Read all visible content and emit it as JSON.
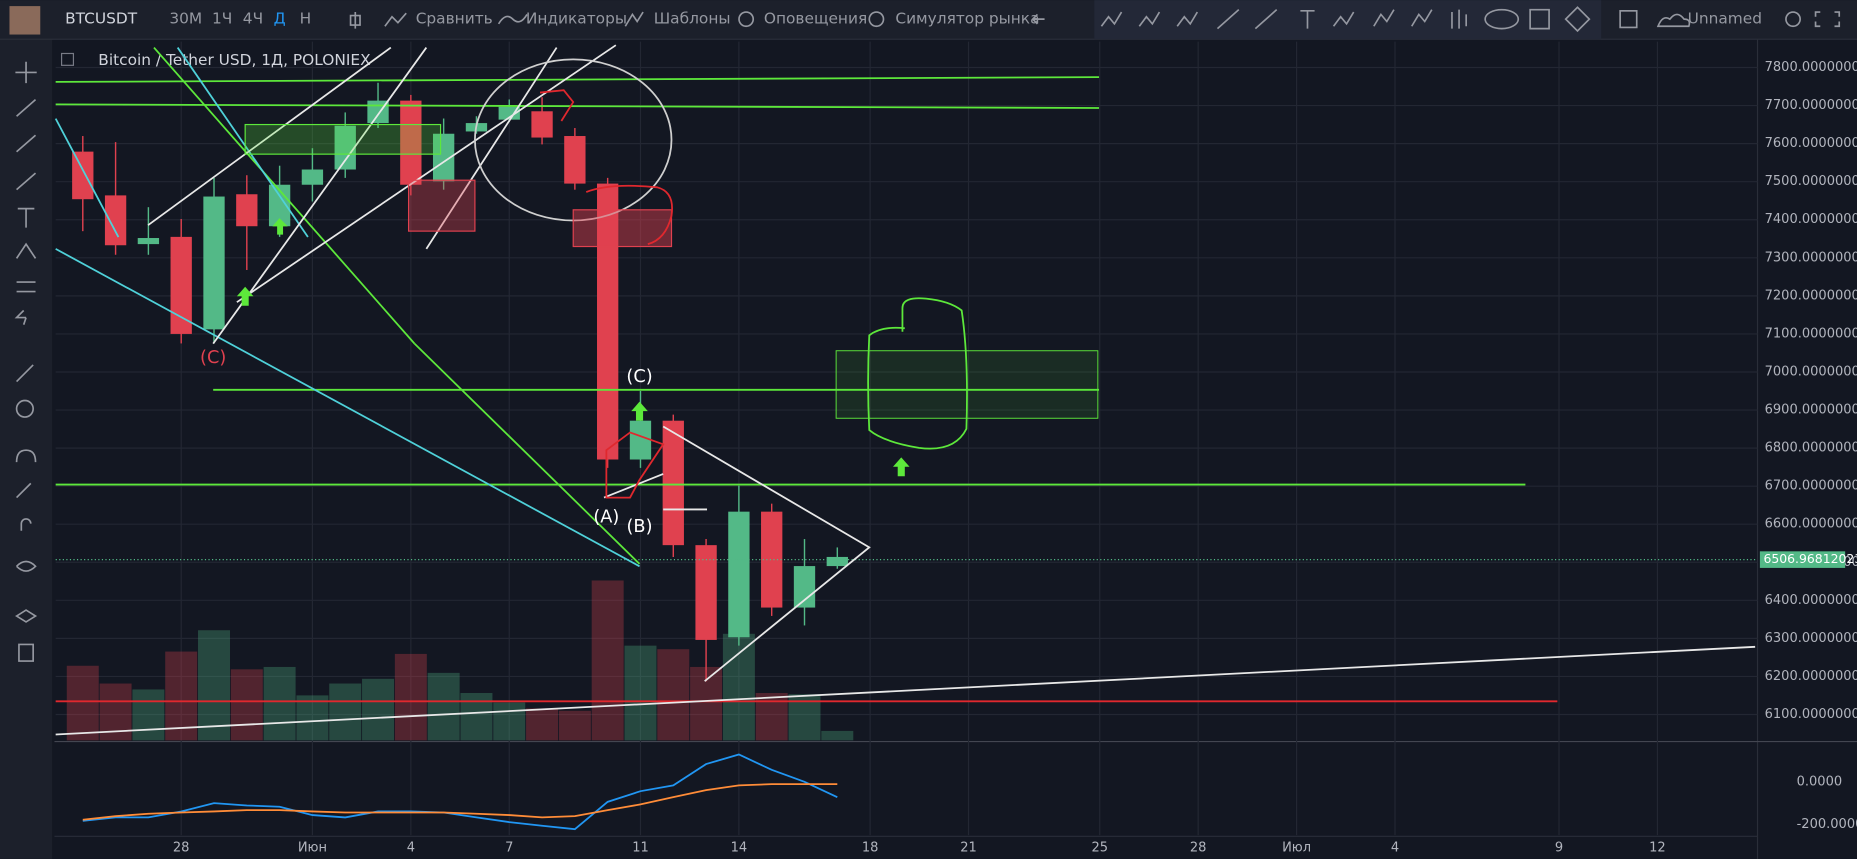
{
  "toolbar": {
    "symbol": "BTCUSDT",
    "intervals": [
      "30М",
      "1Ч",
      "4Ч",
      "Д",
      "Н"
    ],
    "compare": "Сравнить",
    "indicators": "Индикаторы",
    "templates": "Шаблоны",
    "alerts": "Оповещения",
    "simulator": "Симулятор рынка",
    "layout": "Unnamed"
  },
  "annotations": [
    "(C)",
    "(C)",
    "(A)",
    "(B)"
  ],
  "chart_data": {
    "type": "candlestick",
    "title": "Bitcoin / Tether USD, 1Д, POLONIEX",
    "categories": [
      null,
      null,
      null,
      "28",
      null,
      null,
      null,
      "Июн",
      null,
      null,
      "4",
      null,
      null,
      "7",
      null,
      null,
      null,
      "11",
      null,
      null,
      "14",
      null,
      null,
      null,
      "18",
      null,
      null,
      "21",
      null,
      null,
      null,
      "25",
      null,
      null,
      "28",
      null,
      null,
      "Июл",
      null,
      null,
      "4",
      null,
      null,
      null,
      null,
      "9",
      null,
      null,
      "12",
      null
    ],
    "open": [
      7579,
      7464,
      7336,
      7355,
      7112,
      7467,
      7383,
      7492,
      7532,
      7654,
      7713,
      7501,
      7632,
      7663,
      7685,
      7620,
      7495,
      6770,
      6872,
      6545,
      6303,
      6633,
      6381,
      6490,
      null,
      null,
      null,
      null,
      null,
      null,
      null,
      null,
      null,
      null,
      null,
      null,
      null,
      null,
      null,
      null,
      null,
      null,
      null,
      null,
      null,
      null,
      null,
      null,
      null,
      null
    ],
    "high": [
      7620,
      7604,
      7433,
      7402,
      7510,
      7517,
      7542,
      7588,
      7682,
      7760,
      7728,
      7666,
      7672,
      7716,
      7722,
      7641,
      7510,
      6950,
      6888,
      6561,
      6701,
      6654,
      6561,
      6539,
      null,
      null,
      null,
      null,
      null,
      null,
      null,
      null,
      null,
      null,
      null,
      null,
      null,
      null,
      null,
      null,
      null,
      null,
      null,
      null,
      null,
      null,
      null,
      null,
      null,
      null
    ],
    "low": [
      7370,
      7308,
      7308,
      7075,
      7075,
      7268,
      7355,
      7448,
      7510,
      7641,
      7464,
      7479,
      7626,
      7657,
      7598,
      7479,
      6748,
      6748,
      6514,
      6187,
      6281,
      6359,
      6334,
      6483,
      null,
      null,
      null,
      null,
      null,
      null,
      null,
      null,
      null,
      null,
      null,
      null,
      null,
      null,
      null,
      null,
      null,
      null,
      null,
      null,
      null,
      null,
      null,
      null,
      null,
      null
    ],
    "close": [
      7454,
      7333,
      7352,
      7100,
      7461,
      7383,
      7492,
      7532,
      7647,
      7713,
      7492,
      7626,
      7654,
      7697,
      7616,
      7495,
      6770,
      6872,
      6545,
      6296,
      6633,
      6381,
      6490,
      6514,
      null,
      null,
      null,
      null,
      null,
      null,
      null,
      null,
      null,
      null,
      null,
      null,
      null,
      null,
      null,
      null,
      null,
      null,
      null,
      null,
      null,
      null,
      null,
      null,
      null,
      null
    ],
    "volume": [
      63,
      48,
      43,
      75,
      93,
      60,
      62,
      38,
      48,
      52,
      73,
      57,
      40,
      32,
      27,
      25,
      135,
      80,
      77,
      62,
      90,
      40,
      39,
      8,
      null,
      null,
      null,
      null,
      null,
      null,
      null,
      null,
      null,
      null,
      null,
      null,
      null,
      null,
      null,
      null,
      null,
      null,
      null,
      null,
      null,
      null,
      null,
      null,
      null,
      null
    ],
    "volume_ylim": [
      0,
      150
    ],
    "up_color": "#53b987",
    "down_color": "#e0414f",
    "ylim": [
      6032,
      7868
    ],
    "yticks": [
      {
        "value": 6100,
        "label": "6100.00000000"
      },
      {
        "value": 6200,
        "label": "6200.00000000"
      },
      {
        "value": 6300,
        "label": "6300.00000000"
      },
      {
        "value": 6400,
        "label": "6400.00000000"
      },
      {
        "value": 6500,
        "label": "6500.00000000"
      },
      {
        "value": 6600,
        "label": "6600.00000000"
      },
      {
        "value": 6700,
        "label": "6700.00000000"
      },
      {
        "value": 6800,
        "label": "6800.00000000"
      },
      {
        "value": 6900,
        "label": "6900.00000000"
      },
      {
        "value": 7000,
        "label": "7000.00000000"
      },
      {
        "value": 7100,
        "label": "7100.00000000"
      },
      {
        "value": 7200,
        "label": "7200.00000000"
      },
      {
        "value": 7300,
        "label": "7300.00000000"
      },
      {
        "value": 7400,
        "label": "7400.00000000"
      },
      {
        "value": 7500,
        "label": "7500.00000000"
      },
      {
        "value": 7600,
        "label": "7600.00000000"
      },
      {
        "value": 7700,
        "label": "7700.00000000"
      },
      {
        "value": 7800,
        "label": "7800.00000000"
      }
    ],
    "last_price": 6506.96812023,
    "last_price_color": "#53b987",
    "grid": true,
    "indicator": {
      "ylim": [
        -250,
        183
      ],
      "yticks": [
        {
          "value": 0,
          "label": "0.0000"
        },
        {
          "value": -200,
          "label": "-200.0000"
        }
      ],
      "series": [
        {
          "color": "#2196f3",
          "values": [
            -183,
            -167,
            -167,
            -139,
            -100,
            -111,
            -117,
            -156,
            -167,
            -139,
            -139,
            -144,
            -167,
            -189,
            -206,
            -222,
            -94,
            -44,
            -17,
            83,
            128,
            56,
            0,
            -72,
            null,
            null,
            null,
            null,
            null,
            null,
            null,
            null,
            null,
            null,
            null,
            null,
            null,
            null,
            null,
            null,
            null,
            null,
            null,
            null,
            null,
            null,
            null,
            null,
            null,
            null
          ]
        },
        {
          "color": "#ff8c38",
          "values": [
            -178,
            -161,
            -150,
            -144,
            -139,
            -133,
            -133,
            -139,
            -144,
            -144,
            -144,
            -144,
            -150,
            -156,
            -167,
            -161,
            -133,
            -106,
            -72,
            -39,
            -17,
            -11,
            -11,
            -11,
            null,
            null,
            null,
            null,
            null,
            null,
            null,
            null,
            null,
            null,
            null,
            null,
            null,
            null,
            null,
            null,
            null,
            null,
            null,
            null,
            null,
            null,
            null,
            null,
            null,
            null
          ]
        }
      ]
    }
  }
}
